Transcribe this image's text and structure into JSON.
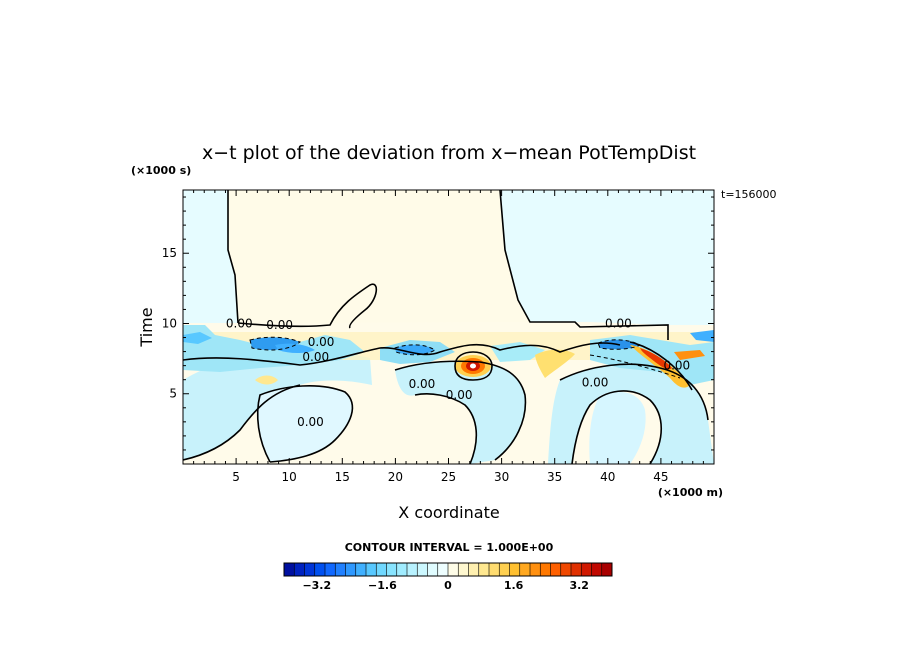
{
  "chart_data": {
    "type": "heatmap",
    "title": "x−t plot of the deviation from x−mean PotTempDist",
    "xlabel": "X coordinate",
    "ylabel": "Time",
    "x_unit": "(×1000 m)",
    "y_unit": "(×1000 s)",
    "time_annotation": "t=156000",
    "xlim": [
      0,
      50
    ],
    "ylim": [
      0,
      19.5
    ],
    "x_ticks": [
      5,
      10,
      15,
      20,
      25,
      30,
      35,
      40,
      45
    ],
    "y_ticks": [
      5,
      10,
      15
    ],
    "contour_label": "0.00",
    "contour_labels": [
      {
        "x": 5.3,
        "y": 10.0,
        "text": "0.00"
      },
      {
        "x": 9.1,
        "y": 9.9,
        "text": "0.00"
      },
      {
        "x": 13.0,
        "y": 8.7,
        "text": "0.00"
      },
      {
        "x": 12.5,
        "y": 7.6,
        "text": "0.00"
      },
      {
        "x": 22.5,
        "y": 5.7,
        "text": "0.00"
      },
      {
        "x": 26.0,
        "y": 4.9,
        "text": "0.00"
      },
      {
        "x": 12.0,
        "y": 3.0,
        "text": "0.00"
      },
      {
        "x": 38.8,
        "y": 5.8,
        "text": "0.00"
      },
      {
        "x": 41.0,
        "y": 10.0,
        "text": "0.00"
      },
      {
        "x": 46.5,
        "y": 7.0,
        "text": "0.00"
      }
    ],
    "contour_interval_text": "CONTOUR INTERVAL = 1.000E+00",
    "colorbar": {
      "min": -4,
      "max": 4,
      "tick_values": [
        -3.2,
        -1.6,
        0,
        1.6,
        3.2
      ],
      "tick_labels": [
        "−3.2",
        "−1.6",
        "0",
        "1.6",
        "3.2"
      ],
      "colors": [
        "#0010a0",
        "#0022c0",
        "#0035d8",
        "#0050f0",
        "#1068ff",
        "#2080ff",
        "#2e98ff",
        "#40b0ff",
        "#58c8ff",
        "#70d8ff",
        "#88e4ff",
        "#a0ecff",
        "#b8f2ff",
        "#ccf8ff",
        "#e0fcff",
        "#eefeff",
        "#fffde8",
        "#fff8d0",
        "#fff0b0",
        "#ffe890",
        "#ffdc70",
        "#ffd050",
        "#ffc030",
        "#ffa820",
        "#ff9010",
        "#ff7800",
        "#ff6000",
        "#f04800",
        "#e03000",
        "#d01800",
        "#c00800",
        "#a80000"
      ]
    }
  }
}
